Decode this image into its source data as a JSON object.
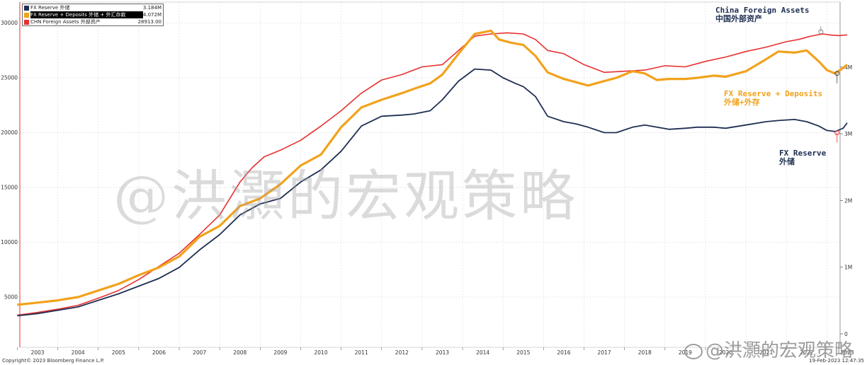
{
  "chart_data": {
    "type": "line",
    "left_axis": {
      "ticks": [
        5000,
        10000,
        15000,
        20000,
        25000,
        30000
      ],
      "labels": [
        "5000",
        "10000",
        "15000",
        "20000",
        "25000",
        "30000"
      ]
    },
    "right_axis": {
      "ticks": [
        0,
        1,
        2,
        3,
        4
      ],
      "labels": [
        "0",
        "1M",
        "2M",
        "3M",
        "4M"
      ]
    },
    "x_ticks": [
      "2003",
      "2004",
      "2005",
      "2006",
      "2007",
      "2008",
      "2009",
      "2010",
      "2011",
      "2012",
      "2013",
      "2014",
      "2015",
      "2016",
      "2017",
      "2018",
      "2019",
      "2020",
      "2021",
      "2022",
      "2023"
    ],
    "legend": [
      {
        "name": "FX Reserve 外储",
        "value": "3.184M",
        "color": "#1f2f52"
      },
      {
        "name": "FX Reserve + Deposits 外储 + 外汇存款",
        "value": "4.072M",
        "color": "#f2a21b"
      },
      {
        "name": "CHN Foreign Assets 外部资产",
        "value": "28913.00",
        "color": "#e83030"
      }
    ],
    "series": [
      {
        "name": "CHN Foreign Assets 外部资产",
        "color": "#e83030",
        "points": [
          [
            2002.5,
            3350
          ],
          [
            2003,
            3600
          ],
          [
            2003.5,
            3900
          ],
          [
            2004,
            4250
          ],
          [
            2004.5,
            4900
          ],
          [
            2005,
            5600
          ],
          [
            2005.5,
            6600
          ],
          [
            2006,
            7800
          ],
          [
            2006.5,
            9000
          ],
          [
            2007,
            10700
          ],
          [
            2007.5,
            12500
          ],
          [
            2008,
            15500
          ],
          [
            2008.3,
            16800
          ],
          [
            2008.6,
            17800
          ],
          [
            2009,
            18400
          ],
          [
            2009.5,
            19300
          ],
          [
            2010,
            20600
          ],
          [
            2010.5,
            22000
          ],
          [
            2011,
            23600
          ],
          [
            2011.5,
            24800
          ],
          [
            2012,
            25300
          ],
          [
            2012.5,
            26000
          ],
          [
            2013,
            26200
          ],
          [
            2013.4,
            27500
          ],
          [
            2013.8,
            28800
          ],
          [
            2014.2,
            29000
          ],
          [
            2014.6,
            29100
          ],
          [
            2015,
            29000
          ],
          [
            2015.3,
            28500
          ],
          [
            2015.6,
            27500
          ],
          [
            2016,
            27200
          ],
          [
            2016.5,
            26200
          ],
          [
            2017,
            25500
          ],
          [
            2017.5,
            25600
          ],
          [
            2018,
            25700
          ],
          [
            2018.5,
            26100
          ],
          [
            2019,
            26000
          ],
          [
            2019.5,
            26500
          ],
          [
            2020,
            26900
          ],
          [
            2020.5,
            27400
          ],
          [
            2021,
            27800
          ],
          [
            2021.5,
            28300
          ],
          [
            2021.8,
            28500
          ],
          [
            2022.1,
            28800
          ],
          [
            2022.4,
            29000
          ],
          [
            2022.6,
            28900
          ],
          [
            2022.8,
            28850
          ],
          [
            2023,
            28913
          ]
        ]
      },
      {
        "name": "FX Reserve + Deposits 外储 + 外汇存款",
        "color": "#f2a21b",
        "points": [
          [
            2002.5,
            4300
          ],
          [
            2003,
            4500
          ],
          [
            2003.5,
            4700
          ],
          [
            2004,
            5000
          ],
          [
            2004.5,
            5600
          ],
          [
            2005,
            6200
          ],
          [
            2005.5,
            7000
          ],
          [
            2006,
            7700
          ],
          [
            2006.5,
            8700
          ],
          [
            2007,
            10500
          ],
          [
            2007.5,
            11500
          ],
          [
            2008,
            13300
          ],
          [
            2008.5,
            14000
          ],
          [
            2009,
            15300
          ],
          [
            2009.5,
            17000
          ],
          [
            2010,
            18000
          ],
          [
            2010.5,
            20500
          ],
          [
            2011,
            22300
          ],
          [
            2011.5,
            23000
          ],
          [
            2012,
            23600
          ],
          [
            2012.3,
            24000
          ],
          [
            2012.7,
            24500
          ],
          [
            2013,
            25300
          ],
          [
            2013.4,
            27200
          ],
          [
            2013.8,
            29000
          ],
          [
            2014.2,
            29300
          ],
          [
            2014.4,
            28500
          ],
          [
            2014.7,
            28200
          ],
          [
            2015,
            28000
          ],
          [
            2015.3,
            27000
          ],
          [
            2015.6,
            25500
          ],
          [
            2016,
            24900
          ],
          [
            2016.3,
            24600
          ],
          [
            2016.6,
            24300
          ],
          [
            2017,
            24700
          ],
          [
            2017.3,
            25000
          ],
          [
            2017.7,
            25600
          ],
          [
            2018,
            25400
          ],
          [
            2018.3,
            24800
          ],
          [
            2018.6,
            24900
          ],
          [
            2019,
            24900
          ],
          [
            2019.3,
            25000
          ],
          [
            2019.7,
            25200
          ],
          [
            2020,
            25100
          ],
          [
            2020.5,
            25600
          ],
          [
            2021,
            26700
          ],
          [
            2021.3,
            27400
          ],
          [
            2021.7,
            27300
          ],
          [
            2022,
            27500
          ],
          [
            2022.3,
            26500
          ],
          [
            2022.5,
            25700
          ],
          [
            2022.7,
            25400
          ],
          [
            2022.9,
            25900
          ],
          [
            2023,
            26200
          ]
        ]
      },
      {
        "name": "FX Reserve 外储",
        "color": "#1f2f52",
        "points": [
          [
            2002.5,
            3300
          ],
          [
            2003,
            3500
          ],
          [
            2003.5,
            3800
          ],
          [
            2004,
            4100
          ],
          [
            2004.5,
            4700
          ],
          [
            2005,
            5300
          ],
          [
            2005.5,
            6000
          ],
          [
            2006,
            6700
          ],
          [
            2006.5,
            7700
          ],
          [
            2007,
            9300
          ],
          [
            2007.5,
            10700
          ],
          [
            2008,
            12500
          ],
          [
            2008.5,
            13500
          ],
          [
            2009,
            14000
          ],
          [
            2009.5,
            15500
          ],
          [
            2010,
            16600
          ],
          [
            2010.5,
            18300
          ],
          [
            2011,
            20600
          ],
          [
            2011.5,
            21500
          ],
          [
            2012,
            21600
          ],
          [
            2012.3,
            21700
          ],
          [
            2012.7,
            22000
          ],
          [
            2013,
            23000
          ],
          [
            2013.4,
            24700
          ],
          [
            2013.8,
            25800
          ],
          [
            2014.2,
            25700
          ],
          [
            2014.5,
            25000
          ],
          [
            2014.8,
            24500
          ],
          [
            2015,
            24200
          ],
          [
            2015.3,
            23300
          ],
          [
            2015.6,
            21500
          ],
          [
            2016,
            21000
          ],
          [
            2016.3,
            20800
          ],
          [
            2016.6,
            20500
          ],
          [
            2017,
            20000
          ],
          [
            2017.3,
            20000
          ],
          [
            2017.7,
            20500
          ],
          [
            2018,
            20700
          ],
          [
            2018.3,
            20500
          ],
          [
            2018.6,
            20300
          ],
          [
            2019,
            20400
          ],
          [
            2019.3,
            20500
          ],
          [
            2019.7,
            20500
          ],
          [
            2020,
            20400
          ],
          [
            2020.5,
            20700
          ],
          [
            2021,
            21000
          ],
          [
            2021.3,
            21100
          ],
          [
            2021.7,
            21200
          ],
          [
            2022,
            21000
          ],
          [
            2022.3,
            20600
          ],
          [
            2022.5,
            20200
          ],
          [
            2022.7,
            20100
          ],
          [
            2022.9,
            20400
          ],
          [
            2023,
            20900
          ]
        ]
      }
    ],
    "annotations": {
      "foreign_assets": {
        "line1": "China Foreign Assets",
        "line2": "中国外部资产"
      },
      "deposits": {
        "line1": "FX Reserve + Deposits",
        "line2": "外储+外存"
      },
      "reserve": {
        "line1": "FX Reserve",
        "line2": "外储"
      }
    }
  },
  "footer": {
    "left": "Copyright© 2023 Bloomberg Finance L.P.",
    "right": "19-Feb-2023 12:47:35"
  },
  "watermark": {
    "main": "@洪灝的宏观策略",
    "corner": "@洪灝的宏观策略"
  }
}
